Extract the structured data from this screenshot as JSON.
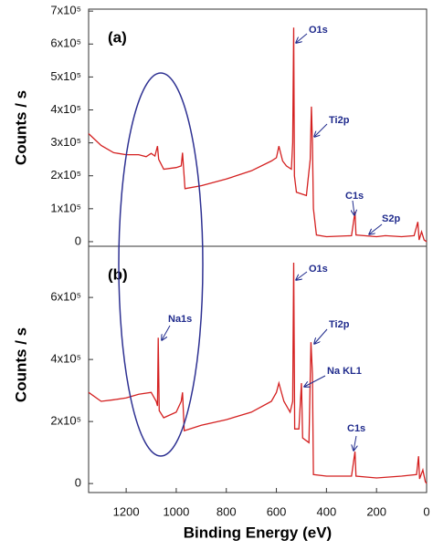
{
  "chart_data": [
    {
      "type": "line",
      "color": "#d42020",
      "panel_label": "(a)",
      "ylabel": "Counts / s",
      "xlim": [
        1350,
        0
      ],
      "ylim": [
        -14000,
        706000
      ],
      "yticks": [
        {
          "value": 700000,
          "label": "7x10⁵"
        },
        {
          "value": 600000,
          "label": "6x10⁵"
        },
        {
          "value": 500000,
          "label": "5x10⁵"
        },
        {
          "value": 400000,
          "label": "4x10⁵"
        },
        {
          "value": 300000,
          "label": "3x10⁵"
        },
        {
          "value": 200000,
          "label": "2x10⁵"
        },
        {
          "value": 100000,
          "label": "1x10⁵"
        },
        0
      ],
      "x": [
        1350,
        1300,
        1250,
        1200,
        1150,
        1120,
        1100,
        1085,
        1075,
        1070,
        1050,
        1000,
        980,
        975,
        965,
        900,
        800,
        700,
        620,
        600,
        590,
        575,
        560,
        540,
        535,
        531,
        528,
        520,
        480,
        465,
        460,
        456,
        452,
        440,
        400,
        300,
        286,
        282,
        200,
        165,
        100,
        50,
        35,
        30,
        20,
        10,
        0
      ],
      "values": [
        328000,
        292000,
        270000,
        264000,
        264000,
        258000,
        268000,
        260000,
        290000,
        250000,
        220000,
        225000,
        230000,
        270000,
        161000,
        170000,
        190000,
        215000,
        245000,
        255000,
        290000,
        245000,
        230000,
        220000,
        300000,
        650000,
        200000,
        150000,
        140000,
        250000,
        410000,
        300000,
        100000,
        20000,
        15000,
        18000,
        90000,
        20000,
        15000,
        18000,
        15000,
        18000,
        60000,
        5000,
        30000,
        5000,
        0
      ],
      "annotations": [
        "O1s",
        "Ti2p",
        "C1s",
        "S2p"
      ]
    },
    {
      "type": "line",
      "color": "#d42020",
      "panel_label": "(b)",
      "ylabel": "Counts / s",
      "xlabel": "Binding Energy (eV)",
      "xlim": [
        1350,
        0
      ],
      "ylim": [
        -29000,
        765000
      ],
      "xticks": [
        1200,
        1000,
        800,
        600,
        400,
        200,
        0
      ],
      "yticks": [
        {
          "value": 600000,
          "label": "6x10⁵"
        },
        {
          "value": 400000,
          "label": "4x10⁵"
        },
        {
          "value": 200000,
          "label": "2x10⁵"
        },
        0
      ],
      "x": [
        1350,
        1300,
        1250,
        1200,
        1150,
        1100,
        1080,
        1075,
        1072,
        1068,
        1050,
        1000,
        980,
        975,
        968,
        900,
        800,
        700,
        620,
        600,
        590,
        570,
        545,
        535,
        531,
        527,
        510,
        500,
        495,
        470,
        462,
        456,
        452,
        400,
        300,
        286,
        282,
        200,
        100,
        40,
        32,
        28,
        15,
        5,
        0
      ],
      "values": [
        294000,
        265000,
        270000,
        276000,
        288000,
        294000,
        265000,
        250000,
        470000,
        235000,
        212000,
        230000,
        265000,
        294000,
        170000,
        188000,
        206000,
        230000,
        265000,
        294000,
        324000,
        265000,
        230000,
        265000,
        712000,
        176000,
        176000,
        324000,
        147000,
        132000,
        456000,
        353000,
        29000,
        24000,
        24000,
        103000,
        24000,
        18000,
        24000,
        29000,
        88000,
        15000,
        44000,
        6000,
        0
      ],
      "annotations": [
        "Na1s",
        "O1s",
        "Ti2p",
        "Na KL1",
        "C1s"
      ]
    }
  ]
}
